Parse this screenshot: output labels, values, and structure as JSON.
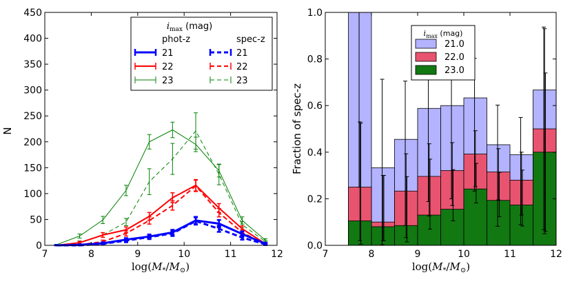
{
  "chart_data": [
    {
      "type": "line",
      "xlabel": "log(M*/M⊙)",
      "ylabel": "N",
      "xlim": [
        7,
        12
      ],
      "ylim": [
        0,
        450
      ],
      "xticks": [
        "7",
        "8",
        "9",
        "10",
        "11",
        "12"
      ],
      "yticks": [
        "0",
        "50",
        "100",
        "150",
        "200",
        "250",
        "300",
        "350",
        "400",
        "450"
      ],
      "legend": {
        "title": "imax (mag)",
        "col_headers": [
          "phot-z",
          "spec-z"
        ],
        "labels": [
          "21",
          "22",
          "23"
        ]
      },
      "series": [
        {
          "name": "phot-z 21",
          "color": "#0000ff",
          "dash": false,
          "width": 3,
          "x": [
            7.25,
            7.75,
            8.25,
            8.75,
            9.25,
            9.75,
            10.25,
            10.75,
            11.25,
            11.75
          ],
          "y": [
            0,
            1,
            4,
            11,
            17,
            25,
            48,
            42,
            22,
            3
          ],
          "err": [
            0.5,
            1,
            2,
            3,
            4,
            5,
            7,
            7,
            5,
            2
          ]
        },
        {
          "name": "spec-z 21",
          "color": "#0000ff",
          "dash": true,
          "width": 3,
          "x": [
            7.25,
            7.75,
            8.25,
            8.75,
            9.25,
            9.75,
            10.25,
            10.75,
            11.25,
            11.75
          ],
          "y": [
            0,
            0,
            3,
            9,
            16,
            23,
            47,
            32,
            15,
            2
          ],
          "err": [
            0.5,
            1,
            2,
            3,
            4,
            5,
            7,
            6,
            4,
            1.5
          ]
        },
        {
          "name": "phot-z 22",
          "color": "#ff0000",
          "dash": false,
          "width": 2,
          "x": [
            7.25,
            7.75,
            8.25,
            8.75,
            9.25,
            9.75,
            10.25,
            10.75,
            11.25,
            11.75
          ],
          "y": [
            0,
            5,
            20,
            30,
            56,
            92,
            116,
            72,
            32,
            3
          ],
          "err": [
            1,
            2.5,
            4.5,
            5.5,
            7.5,
            9.5,
            11,
            8.5,
            5.5,
            2
          ]
        },
        {
          "name": "spec-z 22",
          "color": "#ff0000",
          "dash": true,
          "width": 2,
          "x": [
            7.25,
            7.75,
            8.25,
            8.75,
            9.25,
            9.75,
            10.25,
            10.75,
            11.25,
            11.75
          ],
          "y": [
            0,
            1,
            7,
            23,
            48,
            77,
            115,
            63,
            25,
            2
          ],
          "err": [
            0.5,
            1.5,
            3,
            5,
            7,
            9,
            11,
            8,
            5,
            1.5
          ]
        },
        {
          "name": "phot-z 23",
          "color": "#008000",
          "dash": false,
          "width": 1,
          "x": [
            7.25,
            7.75,
            8.25,
            8.75,
            9.25,
            9.75,
            10.25,
            10.75,
            11.25,
            11.75
          ],
          "y": [
            1,
            18,
            49,
            106,
            200,
            223,
            195,
            144,
            48,
            10
          ],
          "err": [
            1,
            4,
            7,
            10,
            14,
            15,
            14,
            12,
            7,
            3
          ]
        },
        {
          "name": "spec-z 23",
          "color": "#008000",
          "dash": true,
          "width": 1,
          "x": [
            7.25,
            7.75,
            8.25,
            8.75,
            9.25,
            9.75,
            10.25,
            10.75,
            11.25,
            11.75
          ],
          "y": [
            0,
            6,
            20,
            45,
            123,
            167,
            221,
            137,
            40,
            7
          ],
          "err": [
            1,
            2.5,
            4.5,
            7,
            25,
            30,
            35,
            20,
            6,
            2.5
          ]
        }
      ]
    },
    {
      "type": "bar",
      "xlabel": "log(M*/M⊙)",
      "ylabel": "Fraction of spec-z",
      "xlim": [
        7,
        12
      ],
      "ylim": [
        0,
        1
      ],
      "xticks": [
        "7",
        "8",
        "9",
        "10",
        "11",
        "12"
      ],
      "yticks": [
        "0.0",
        "0.2",
        "0.4",
        "0.6",
        "0.8",
        "1.0"
      ],
      "bin_edges": [
        7.5,
        8.0,
        8.5,
        9.0,
        9.5,
        10.0,
        10.5,
        11.0,
        11.5,
        12.0
      ],
      "legend": {
        "title": "imax (mag)"
      },
      "series": [
        {
          "name": "21.0",
          "color": "#b0b0ff",
          "values": [
            1.0,
            0.333,
            0.455,
            0.588,
            0.6,
            0.633,
            0.432,
            0.389,
            0.667
          ],
          "err_lo": [
            0.75,
            0.33,
            0.37,
            0.4,
            0.4,
            0.4,
            0.35,
            0.3,
            0.6
          ],
          "err_hi": [
            0.0,
            0.38,
            0.25,
            0.25,
            0.22,
            0.17,
            0.17,
            0.16,
            0.27
          ]
        },
        {
          "name": "22.0",
          "color": "#ff6666",
          "values": [
            0.25,
            0.1,
            0.233,
            0.296,
            0.321,
            0.392,
            0.315,
            0.28,
            0.5
          ],
          "err_lo": [
            0.23,
            0.08,
            0.2,
            0.17,
            0.15,
            0.14,
            0.12,
            0.15,
            0.45
          ],
          "err_hi": [
            0.28,
            0.2,
            0.16,
            0.14,
            0.12,
            0.1,
            0.1,
            0.12,
            0.43
          ]
        },
        {
          "name": "23.0",
          "color": "#117711",
          "values": [
            0.105,
            0.08,
            0.085,
            0.13,
            0.155,
            0.242,
            0.193,
            0.173,
            0.4
          ],
          "err_lo": [
            0.1,
            0.06,
            0.07,
            0.06,
            0.05,
            0.06,
            0.07,
            0.09,
            0.34
          ],
          "err_hi": [
            0.42,
            0.22,
            0.21,
            0.24,
            0.17,
            0.11,
            0.12,
            0.15,
            0.34
          ]
        }
      ]
    }
  ]
}
